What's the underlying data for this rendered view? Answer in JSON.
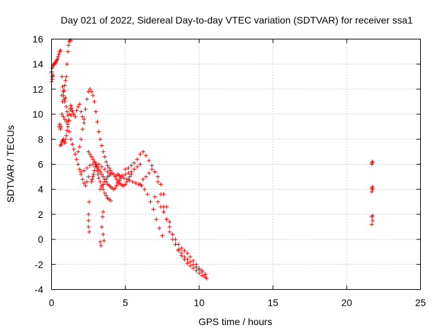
{
  "chart_data": {
    "type": "scatter",
    "title": "Day 021 of 2022, Sidereal Day-to-day VTEC variation (SDTVAR) for receiver ssa1",
    "xlabel": "GPS time / hours",
    "ylabel": "SDTVAR / TECUs",
    "xlim": [
      0,
      25
    ],
    "ylim": [
      -4,
      16
    ],
    "xticks": [
      0,
      5,
      10,
      15,
      20,
      25
    ],
    "yticks": [
      -4,
      -2,
      0,
      2,
      4,
      6,
      8,
      10,
      12,
      14,
      16
    ],
    "xtick_labels": [
      "0",
      "5",
      "10",
      "15",
      "20",
      "25"
    ],
    "ytick_labels": [
      "-4",
      "-2",
      "0",
      "2",
      "4",
      "6",
      "8",
      "10",
      "12",
      "14",
      "16"
    ],
    "grid": true,
    "marker": "+",
    "color": "#ff0000",
    "series": [
      {
        "name": "ssa1",
        "x": [
          0.0,
          0.05,
          0.1,
          0.15,
          0.2,
          0.25,
          0.3,
          0.35,
          0.4,
          0.45,
          0.5,
          0.55,
          0.6,
          0.0,
          0.05,
          0.1,
          0.0,
          0.05,
          0.7,
          0.75,
          0.8,
          0.85,
          0.9,
          0.95,
          1.0,
          1.05,
          1.1,
          1.15,
          1.2,
          1.25,
          1.3,
          0.6,
          0.65,
          0.7,
          0.75,
          0.8,
          0.85,
          0.9,
          0.95,
          1.0,
          1.05,
          1.1,
          1.15,
          1.2,
          1.25,
          1.3,
          1.35,
          1.4,
          0.5,
          0.55,
          0.6,
          0.65,
          0.7,
          0.75,
          0.8,
          0.85,
          0.9,
          0.95,
          1.0,
          1.05,
          1.1,
          1.15,
          1.2,
          0.7,
          0.8,
          0.9,
          1.0,
          1.1,
          1.2,
          1.3,
          1.4,
          1.5,
          1.6,
          1.7,
          1.8,
          1.9,
          2.0,
          2.1,
          2.2,
          1.3,
          1.4,
          1.5,
          1.6,
          1.7,
          1.8,
          1.9,
          2.0,
          2.1,
          2.2,
          2.3,
          2.4,
          2.5,
          1.8,
          1.9,
          2.0,
          2.1,
          2.2,
          2.3,
          2.4,
          2.5,
          2.6,
          2.7,
          2.8,
          2.9,
          3.0,
          3.1,
          3.2,
          3.3,
          3.4,
          3.5,
          3.6,
          3.7,
          3.8,
          3.9,
          4.0,
          2.5,
          2.6,
          2.7,
          2.8,
          2.9,
          3.0,
          3.1,
          3.2,
          3.3,
          3.4,
          3.5,
          3.6,
          3.7,
          3.8,
          3.9,
          4.0,
          4.1,
          4.2,
          4.3,
          4.4,
          4.5,
          4.6,
          4.7,
          2.7,
          2.75,
          2.8,
          2.85,
          2.9,
          2.95,
          3.0,
          3.05,
          3.1,
          3.15,
          3.2,
          3.3,
          3.4,
          3.5,
          3.6,
          3.7,
          3.8,
          3.9,
          4.0,
          2.0,
          2.2,
          2.4,
          2.6,
          2.8,
          3.0,
          3.2,
          3.4,
          3.6,
          3.8,
          4.0,
          4.2,
          4.4,
          4.6,
          4.8,
          5.0,
          5.2,
          5.4,
          5.6,
          5.8,
          6.0,
          3.3,
          3.4,
          3.5,
          3.6,
          3.7,
          3.8,
          3.9,
          4.0,
          4.1,
          4.2,
          4.3,
          4.4,
          4.5,
          4.6,
          4.7,
          4.8,
          4.9,
          5.0,
          5.1,
          5.2,
          5.3,
          5.4,
          4.5,
          4.7,
          4.9,
          5.1,
          5.3,
          5.5,
          5.7,
          5.9,
          6.1,
          6.3,
          6.5,
          6.7,
          6.9,
          7.1,
          7.3,
          7.5,
          5.0,
          5.2,
          5.4,
          5.6,
          5.8,
          6.0,
          6.2,
          6.4,
          6.6,
          6.8,
          7.0,
          7.2,
          7.4,
          7.6,
          7.8,
          8.0,
          8.2,
          8.4,
          8.6,
          8.8,
          9.0,
          9.2,
          9.4,
          9.6,
          9.8,
          10.0,
          10.2,
          10.4,
          6.0,
          6.2,
          6.4,
          6.6,
          6.8,
          7.0,
          7.2,
          7.4,
          7.6,
          7.8,
          8.0,
          8.2,
          8.4,
          8.6,
          8.8,
          9.0,
          9.2,
          9.4,
          9.6,
          9.8,
          10.0,
          10.2,
          10.4,
          7.0,
          7.2,
          7.4,
          7.6,
          7.8,
          8.0,
          8.2,
          8.4,
          8.6,
          8.8,
          9.0,
          9.2,
          9.4,
          9.6,
          9.8,
          10.0,
          10.2,
          10.4,
          10.5,
          2.5,
          2.5,
          2.5,
          2.55,
          2.55,
          3.3,
          3.35,
          3.4,
          3.45,
          3.5,
          3.5,
          3.55,
          21.7,
          21.75,
          21.7,
          21.75,
          21.7,
          21.75,
          21.7,
          21.75,
          21.7,
          21.75,
          21.7,
          21.75
        ],
        "y": [
          13.4,
          13.7,
          13.9,
          14.0,
          14.0,
          14.1,
          14.2,
          14.3,
          14.4,
          14.6,
          14.8,
          15.0,
          15.1,
          12.6,
          12.8,
          13.1,
          13.3,
          13.0,
          13.0,
          12.2,
          11.5,
          11.9,
          12.3,
          12.7,
          13.0,
          14.0,
          15.0,
          15.5,
          15.8,
          15.9,
          15.9,
          7.5,
          7.6,
          7.8,
          7.9,
          8.0,
          7.8,
          7.7,
          8.0,
          8.3,
          8.7,
          9.0,
          9.5,
          10.0,
          10.4,
          10.7,
          10.5,
          10.3,
          9.0,
          9.2,
          8.8,
          9.0,
          11.5,
          11.0,
          11.8,
          11.2,
          11.0,
          11.3,
          10.6,
          10.2,
          9.9,
          9.5,
          8.6,
          10.0,
          9.8,
          9.6,
          9.4,
          9.2,
          9.5,
          9.9,
          10.2,
          10.0,
          9.8,
          10.3,
          10.6,
          10.8,
          10.2,
          9.8,
          9.3,
          8.0,
          7.6,
          7.2,
          6.8,
          6.4,
          6.0,
          5.6,
          5.2,
          4.8,
          4.5,
          4.3,
          4.6,
          5.0,
          7.0,
          7.4,
          8.0,
          8.8,
          9.6,
          10.4,
          11.2,
          11.8,
          12.0,
          11.8,
          11.5,
          11.0,
          10.2,
          9.4,
          8.6,
          8.0,
          7.5,
          7.0,
          6.6,
          6.2,
          5.9,
          5.7,
          5.5,
          7.0,
          6.8,
          6.6,
          6.4,
          6.2,
          6.0,
          5.8,
          5.6,
          5.4,
          5.2,
          5.0,
          4.8,
          4.6,
          4.4,
          4.3,
          4.2,
          4.1,
          4.0,
          4.1,
          4.3,
          4.5,
          4.7,
          4.9,
          4.6,
          4.8,
          5.0,
          5.2,
          5.5,
          5.8,
          6.0,
          5.8,
          5.5,
          5.2,
          4.9,
          4.6,
          4.3,
          4.0,
          3.7,
          3.5,
          3.3,
          3.2,
          3.1,
          5.4,
          5.5,
          5.7,
          5.9,
          6.0,
          6.1,
          6.0,
          5.8,
          5.6,
          5.4,
          5.3,
          5.2,
          5.1,
          5.1,
          5.1,
          5.2,
          5.3,
          5.4,
          5.6,
          5.8,
          6.0,
          4.0,
          4.2,
          4.4,
          4.6,
          4.8,
          5.0,
          5.1,
          5.2,
          5.3,
          5.2,
          5.0,
          4.8,
          4.6,
          4.5,
          4.4,
          4.3,
          4.3,
          4.4,
          4.6,
          4.8,
          5.0,
          5.2,
          5.2,
          5.0,
          4.9,
          4.8,
          4.7,
          4.6,
          4.5,
          4.4,
          4.3,
          4.0,
          3.6,
          3.0,
          2.4,
          1.6,
          0.9,
          0.3,
          5.6,
          5.7,
          5.9,
          6.1,
          6.4,
          6.8,
          7.0,
          6.7,
          6.3,
          5.9,
          5.4,
          4.6,
          3.6,
          2.6,
          1.6,
          0.6,
          0.0,
          -0.4,
          -0.8,
          -1.1,
          -1.4,
          -1.6,
          -1.8,
          -2.0,
          -2.2,
          -2.4,
          -2.6,
          -2.8,
          4.4,
          4.8,
          5.0,
          5.3,
          5.6,
          5.4,
          5.0,
          4.4,
          3.6,
          2.6,
          1.4,
          0.4,
          -0.4,
          -0.9,
          -1.3,
          -1.6,
          -1.9,
          -2.1,
          -2.3,
          -2.5,
          -2.7,
          -2.9,
          -3.0,
          3.4,
          3.0,
          2.6,
          2.2,
          1.6,
          1.0,
          0.4,
          0.0,
          -0.4,
          -0.7,
          -0.9,
          -1.1,
          -1.4,
          -1.7,
          -2.0,
          -2.3,
          -2.5,
          -2.8,
          -3.1,
          2.0,
          1.5,
          1.0,
          0.6,
          3.0,
          -0.2,
          -0.5,
          1.0,
          1.8,
          0.4,
          2.2,
          -0.1,
          6.0,
          6.2,
          6.1,
          6.2,
          4.1,
          4.2,
          3.8,
          4.0,
          1.8,
          1.9,
          1.2,
          1.5
        ]
      }
    ]
  }
}
